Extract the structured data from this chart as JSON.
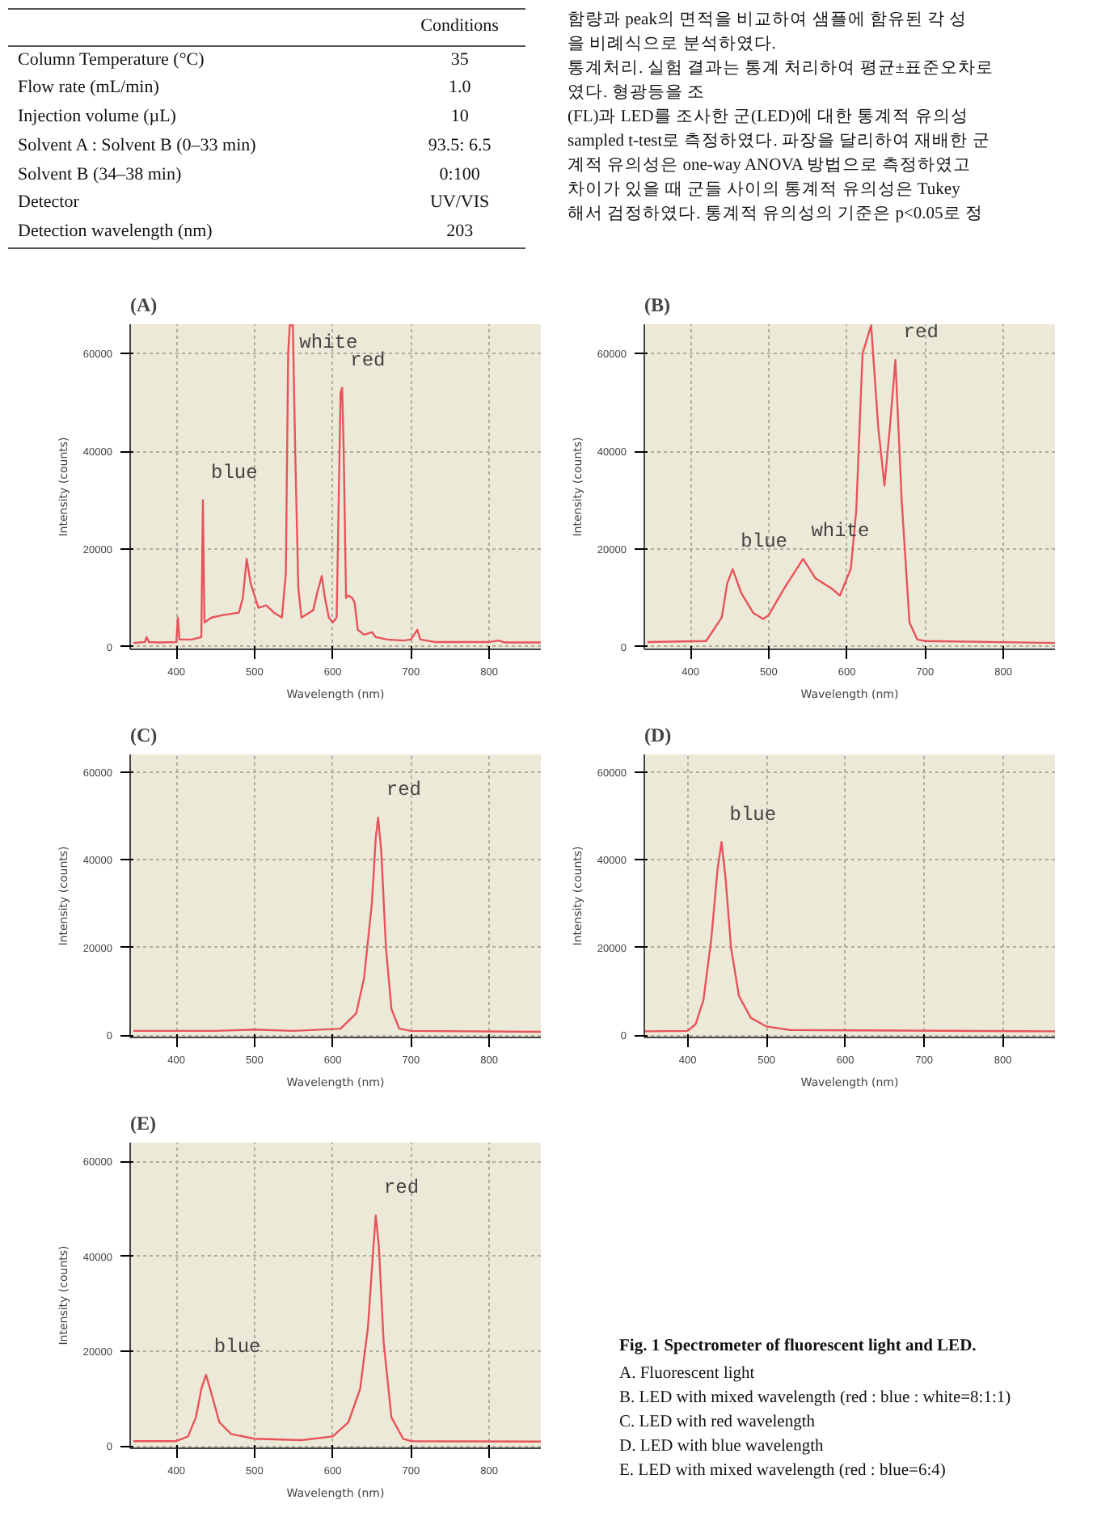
{
  "chart_data": [
    {
      "type": "other",
      "subtitle": "Conditions",
      "annotations": [
        "Column Temperature (°C)",
        "35",
        "Flow rate (mL/min)",
        "1.0",
        "Injection volume (µL)",
        "10",
        "Solvent A : Solvent B (0–33 min)",
        "93.5: 6.5",
        "Solvent B (34–38 min)",
        "0:100",
        "Detector",
        "UV/VIS",
        "Detection wavelength (nm)",
        "203"
      ]
    },
    {
      "type": "other",
      "annotations": [
        "함량과 peak의 면적을 비교하여 샘플에 함유된 각 성",
        "을 비례식으로 분석하였다.",
        "통계처리. 실험 결과는 통계 처리하여 평균±표준오차로",
        "였다. 형광등을 조",
        "(FL)과 LED를 조사한 군(LED)에 대한 통계적 유의성",
        "sampled t-test로 측정하였다. 파장을 달리하여 재배한 군",
        "계적 유의성은 one-way ANOVA 방법으로 측정하였고",
        "차이가 있을 때 군들 사이의 통계적 유의성은 Tukey",
        "해서 검정하였다. 통계적 유의성의 기준은 p<0.05로 정"
      ]
    },
    {
      "type": "line",
      "title": "(A)",
      "xlabel": "Wavelength (nm)",
      "ylabel": "Intensity (counts)",
      "xlim": [
        341,
        866
      ],
      "ylim": [
        -500,
        66000
      ],
      "xticks": [
        400,
        500,
        600,
        700,
        800
      ],
      "yticks": [
        0,
        20000,
        40000,
        60000
      ],
      "grid": true,
      "x": [
        345,
        360,
        362,
        365,
        380,
        400,
        402,
        404,
        420,
        432,
        434,
        436,
        445,
        460,
        480,
        485,
        490,
        495,
        505,
        515,
        525,
        535,
        540,
        543,
        545,
        549,
        552,
        556,
        560,
        575,
        580,
        586,
        590,
        595,
        600,
        605,
        610,
        612,
        614,
        617,
        620,
        625,
        628,
        632,
        640,
        650,
        655,
        670,
        690,
        700,
        708,
        712,
        730,
        800,
        812,
        820,
        866
      ],
      "series": [
        {
          "color": "#e8535b",
          "values": [
            800,
            1000,
            2000,
            1000,
            900,
            1000,
            6000,
            1500,
            1500,
            2000,
            30000,
            5000,
            6000,
            6500,
            7000,
            10000,
            18000,
            13000,
            8000,
            8500,
            7000,
            6000,
            15000,
            60000,
            65800,
            65800,
            40000,
            12000,
            6000,
            7500,
            11000,
            14500,
            10000,
            6000,
            5000,
            6000,
            52000,
            53000,
            40000,
            10000,
            10500,
            10000,
            9000,
            3500,
            2500,
            3000,
            2000,
            1500,
            1300,
            1500,
            3500,
            1500,
            1000,
            1000,
            1300,
            900,
            900
          ]
        }
      ],
      "annotations": [
        {
          "text": "white",
          "x": 547,
          "y": 65800
        },
        {
          "text": "blue",
          "x": 434,
          "y": 30000
        },
        {
          "text": "red",
          "x": 612,
          "y": 53000
        }
      ]
    },
    {
      "type": "line",
      "title": "(B)",
      "xlabel": "Wavelength (nm)",
      "ylabel": "Intensity (counts)",
      "xlim": [
        341,
        866
      ],
      "ylim": [
        -500,
        66000
      ],
      "xticks": [
        400,
        500,
        600,
        700,
        800
      ],
      "yticks": [
        0,
        20000,
        40000,
        60000
      ],
      "grid": true,
      "x": [
        345,
        420,
        440,
        447,
        454,
        465,
        480,
        493,
        500,
        520,
        544,
        560,
        580,
        591,
        605,
        612,
        620,
        631,
        640,
        648,
        655,
        662,
        670,
        680,
        690,
        700,
        866
      ],
      "series": [
        {
          "color": "#e8535b",
          "values": [
            1000,
            1200,
            6000,
            13000,
            15900,
            11000,
            7000,
            5700,
            6500,
            12000,
            18000,
            14000,
            12000,
            10500,
            16000,
            28000,
            60000,
            65800,
            45000,
            33000,
            45000,
            58700,
            30000,
            5000,
            1500,
            1200,
            800
          ]
        }
      ],
      "annotations": [
        {
          "text": "blue",
          "x": 454,
          "y": 15900
        },
        {
          "text": "white",
          "x": 544,
          "y": 18000
        },
        {
          "text": "red",
          "x": 662,
          "y": 58700
        }
      ]
    },
    {
      "type": "line",
      "title": "(C)",
      "xlabel": "Wavelength (nm)",
      "ylabel": "Intensity (counts)",
      "xlim": [
        341,
        866
      ],
      "ylim": [
        -500,
        64000
      ],
      "xticks": [
        400,
        500,
        600,
        700,
        800
      ],
      "yticks": [
        0,
        20000,
        40000,
        60000
      ],
      "grid": true,
      "x": [
        345,
        450,
        500,
        550,
        610,
        630,
        640,
        650,
        655,
        658,
        662,
        668,
        675,
        685,
        700,
        866
      ],
      "series": [
        {
          "color": "#e8535b",
          "values": [
            1000,
            1000,
            1300,
            1000,
            1500,
            5000,
            13000,
            30000,
            45000,
            49600,
            42000,
            20000,
            6000,
            1500,
            1000,
            800
          ]
        }
      ],
      "annotations": [
        {
          "text": "red",
          "x": 658,
          "y": 49600
        }
      ]
    },
    {
      "type": "line",
      "title": "(D)",
      "xlabel": "Wavelength (nm)",
      "ylabel": "Intensity (counts)",
      "xlim": [
        345,
        866
      ],
      "ylim": [
        -500,
        64000
      ],
      "xticks": [
        400,
        500,
        600,
        700,
        800
      ],
      "yticks": [
        0,
        20000,
        40000,
        60000
      ],
      "grid": true,
      "x": [
        345,
        400,
        410,
        420,
        430,
        438,
        443,
        448,
        455,
        465,
        480,
        500,
        530,
        866
      ],
      "series": [
        {
          "color": "#e8535b",
          "values": [
            900,
            1000,
            2500,
            8000,
            22000,
            38000,
            44000,
            36000,
            20000,
            9000,
            4000,
            2000,
            1200,
            900
          ]
        }
      ],
      "annotations": [
        {
          "text": "blue",
          "x": 443,
          "y": 44000
        }
      ]
    },
    {
      "type": "line",
      "title": "(E)",
      "xlabel": "Wavelength (nm)",
      "ylabel": "Intensity (counts)",
      "xlim": [
        341,
        866
      ],
      "ylim": [
        -500,
        64000
      ],
      "xticks": [
        400,
        500,
        600,
        700,
        800
      ],
      "yticks": [
        0,
        20000,
        40000,
        60000
      ],
      "grid": true,
      "x": [
        345,
        400,
        415,
        425,
        432,
        438,
        445,
        455,
        470,
        500,
        560,
        600,
        620,
        635,
        645,
        652,
        655,
        659,
        665,
        675,
        690,
        700,
        866
      ],
      "series": [
        {
          "color": "#e8535b",
          "values": [
            1000,
            1000,
            2000,
            6000,
            12000,
            15000,
            11000,
            5000,
            2500,
            1500,
            1200,
            2000,
            5000,
            12000,
            25000,
            42000,
            48600,
            42000,
            22000,
            6000,
            1500,
            1000,
            900
          ]
        }
      ],
      "annotations": [
        {
          "text": "blue",
          "x": 438,
          "y": 15000
        },
        {
          "text": "red",
          "x": 655,
          "y": 48600
        }
      ]
    },
    {
      "type": "other",
      "title": "Fig. 1 Spectrometer of fluorescent light and LED.",
      "annotations": [
        "A. Fluorescent light",
        "B. LED with mixed wavelength (red : blue : white=8:1:1)",
        "C. LED with red wavelength",
        "D. LED with blue wavelength",
        "E. LED with mixed wavelength (red : blue=6:4)"
      ]
    }
  ]
}
